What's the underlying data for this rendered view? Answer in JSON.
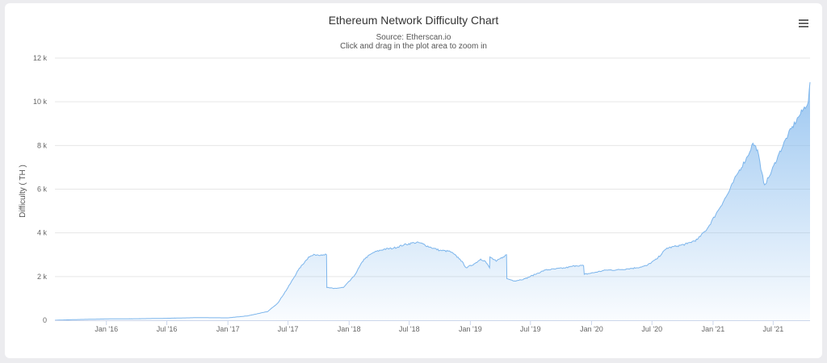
{
  "chart_data": {
    "type": "area",
    "title": "Ethereum Network Difficulty Chart",
    "subtitles": [
      "Source: Etherscan.io",
      "Click and drag in the plot area to zoom in"
    ],
    "ylabel": "Difficulty ( TH )",
    "xlabel": "",
    "x_ticks": [
      "Jan '16",
      "Jul '16",
      "Jan '17",
      "Jul '17",
      "Jan '18",
      "Jul '18",
      "Jan '19",
      "Jul '19",
      "Jan '20",
      "Jul '20",
      "Jan '21",
      "Jul '21"
    ],
    "y_ticks": [
      "0",
      "2 k",
      "4 k",
      "6 k",
      "8 k",
      "10 k",
      "12 k"
    ],
    "ylim": [
      0,
      12000
    ],
    "xlim": [
      "2015-07-30",
      "2021-10-20"
    ],
    "grid": true,
    "legend": false,
    "colors": {
      "line": "#7cb5ec",
      "fill_top": "#7cb5ec",
      "fill_bottom": "#ffffff"
    },
    "series": [
      {
        "x": [
          "2015-07-30",
          "2015-10-01",
          "2016-01-01",
          "2016-04-01",
          "2016-07-01",
          "2016-10-01",
          "2017-01-01",
          "2017-03-01",
          "2017-05-01",
          "2017-06-01",
          "2017-07-01",
          "2017-08-01",
          "2017-09-01",
          "2017-09-20",
          "2017-10-15",
          "2017-10-25",
          "2017-10-26",
          "2017-11-15",
          "2017-12-15",
          "2018-01-15",
          "2018-02-15",
          "2018-03-15",
          "2018-04-15",
          "2018-05-15",
          "2018-06-15",
          "2018-07-15",
          "2018-08-01",
          "2018-09-01",
          "2018-10-01",
          "2018-11-01",
          "2018-12-01",
          "2018-12-20",
          "2019-01-15",
          "2019-02-01",
          "2019-02-15",
          "2019-02-28",
          "2019-03-01",
          "2019-03-20",
          "2019-04-10",
          "2019-04-20",
          "2019-04-21",
          "2019-05-15",
          "2019-06-15",
          "2019-07-15",
          "2019-08-15",
          "2019-09-15",
          "2019-10-15",
          "2019-11-15",
          "2019-12-08",
          "2019-12-10",
          "2020-01-15",
          "2020-02-15",
          "2020-03-15",
          "2020-04-15",
          "2020-05-15",
          "2020-06-15",
          "2020-07-15",
          "2020-08-15",
          "2020-09-15",
          "2020-10-15",
          "2020-11-15",
          "2020-12-15",
          "2021-01-15",
          "2021-02-15",
          "2021-03-15",
          "2021-04-15",
          "2021-05-01",
          "2021-05-15",
          "2021-05-25",
          "2021-06-05",
          "2021-06-20",
          "2021-07-15",
          "2021-08-15",
          "2021-09-15",
          "2021-10-15",
          "2021-10-20"
        ],
        "values": [
          0,
          30,
          60,
          70,
          90,
          120,
          110,
          200,
          400,
          800,
          1500,
          2300,
          2900,
          3000,
          3000,
          3000,
          1500,
          1450,
          1500,
          2000,
          2800,
          3100,
          3250,
          3300,
          3450,
          3550,
          3550,
          3350,
          3200,
          3150,
          2800,
          2400,
          2600,
          2800,
          2700,
          2400,
          2900,
          2700,
          2900,
          3000,
          1900,
          1800,
          1900,
          2100,
          2300,
          2350,
          2400,
          2500,
          2500,
          2100,
          2200,
          2300,
          2300,
          2350,
          2400,
          2500,
          2800,
          3300,
          3400,
          3500,
          3700,
          4200,
          5000,
          5800,
          6700,
          7500,
          8100,
          7800,
          6900,
          6200,
          6600,
          7500,
          8500,
          9300,
          10000,
          10900
        ]
      }
    ]
  }
}
